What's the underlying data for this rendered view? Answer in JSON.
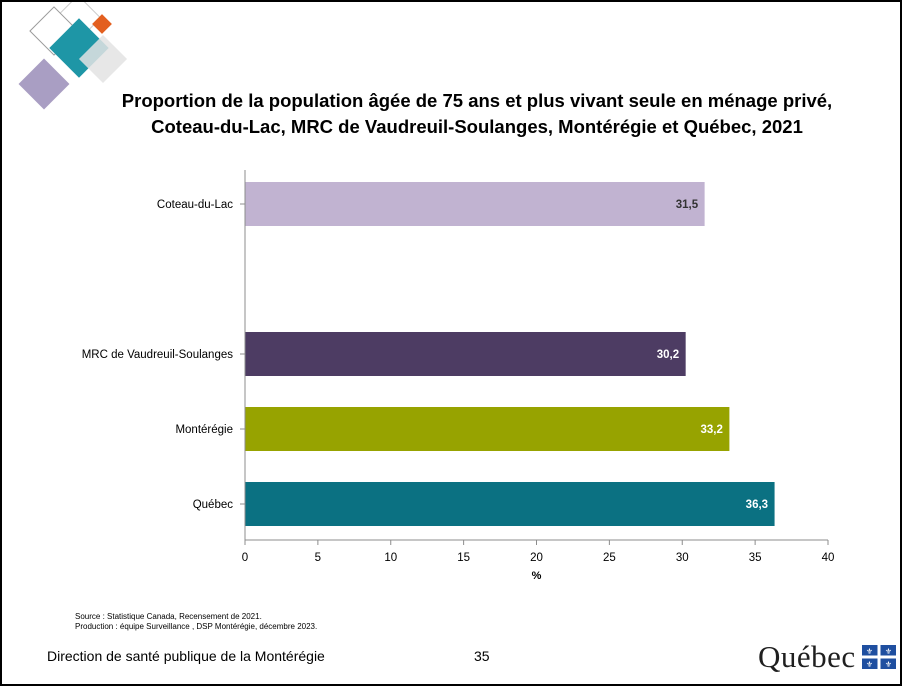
{
  "footer": {
    "organization": "Direction de santé publique de la Montérégie",
    "page_number": "35",
    "brand": "Québec"
  },
  "source": {
    "line1": "Source : Statistique Canada, Recensement de 2021.",
    "line2": "Production : équipe Surveillance , DSP Montérégie, décembre 2023."
  },
  "icons": {
    "logo": "decorative-diamonds-logo",
    "flag": "quebec-fleur-de-lis-flag"
  },
  "chart_data": {
    "type": "bar",
    "orientation": "horizontal",
    "title": "Proportion de la population âgée de 75 ans et plus vivant seule en ménage privé,",
    "subtitle": "Coteau-du-Lac, MRC de Vaudreuil-Soulanges, Montérégie et Québec, 2021",
    "xlabel": "%",
    "ylabel": "",
    "xlim": [
      0,
      40
    ],
    "xticks": [
      "0",
      "5",
      "10",
      "15",
      "20",
      "25",
      "30",
      "35",
      "40"
    ],
    "categories": [
      "Coteau-du-Lac",
      "MRC de Vaudreuil-Soulanges",
      "Montérégie",
      "Québec"
    ],
    "values": [
      31.5,
      30.2,
      33.2,
      36.3
    ],
    "value_labels": [
      "31,5",
      "30,2",
      "33,2",
      "36,3"
    ],
    "colors": [
      "#c1b3d1",
      "#4d3c63",
      "#97a300",
      "#0b7182"
    ],
    "label_colors": [
      "#333333",
      "#ffffff",
      "#ffffff",
      "#ffffff"
    ],
    "grid": false,
    "legend": "none"
  }
}
